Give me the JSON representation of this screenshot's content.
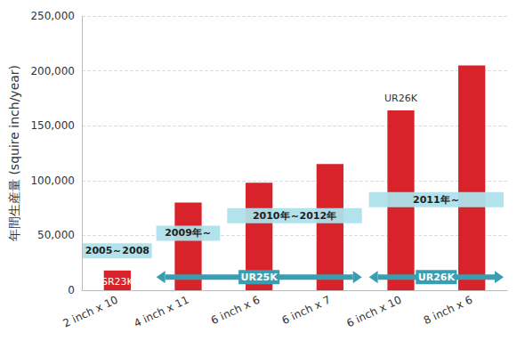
{
  "chart_data": {
    "type": "bar",
    "y_label": "年間生産量 (squire inch/year)",
    "categories": [
      "2 inch x 10",
      "4 inch x 11",
      "6 inch x 6",
      "6 inch x 7",
      "6 inch x 10",
      "8 inch x 6"
    ],
    "values": [
      18000,
      80000,
      98000,
      115000,
      164000,
      205000
    ],
    "color": "#d8232a",
    "ylim": [
      0,
      250000
    ],
    "yticks": [
      0,
      {
        "value": 50000,
        "label": "50,000"
      },
      {
        "value": 100000,
        "label": "100,000"
      },
      {
        "value": 150000,
        "label": "150,000"
      },
      {
        "value": 200000,
        "label": "200,000"
      },
      {
        "value": 250000,
        "label": "250,000"
      }
    ],
    "grid": true,
    "period_labels": [
      {
        "text": "2005～2008",
        "x": "2 inch x 10",
        "y": 36000
      },
      {
        "text": "2009年～",
        "x": "4 inch x 11",
        "y": 52000
      },
      {
        "text": "2010年～2012年",
        "x": [
          "6 inch x 6",
          "6 inch x 7"
        ],
        "y": 68000
      },
      {
        "text": "2011年～",
        "x": [
          "6 inch x 10",
          "8 inch x 6"
        ],
        "y": 82500
      }
    ],
    "model_arrows": [
      {
        "text": "UR25K",
        "x": [
          "4 inch x 11",
          "6 inch x 7"
        ],
        "y": 12000
      },
      {
        "text": "UR26K",
        "x": [
          "6 inch x 10",
          "8 inch x 6"
        ],
        "y": 12000
      }
    ],
    "text_labels": [
      {
        "text": "SR23K",
        "x": "2 inch x 10",
        "y": 8000,
        "color": "#ffffff"
      },
      {
        "text": "UR26K",
        "x": "6 inch x 10",
        "y": 175000,
        "color": "#333333"
      }
    ]
  }
}
